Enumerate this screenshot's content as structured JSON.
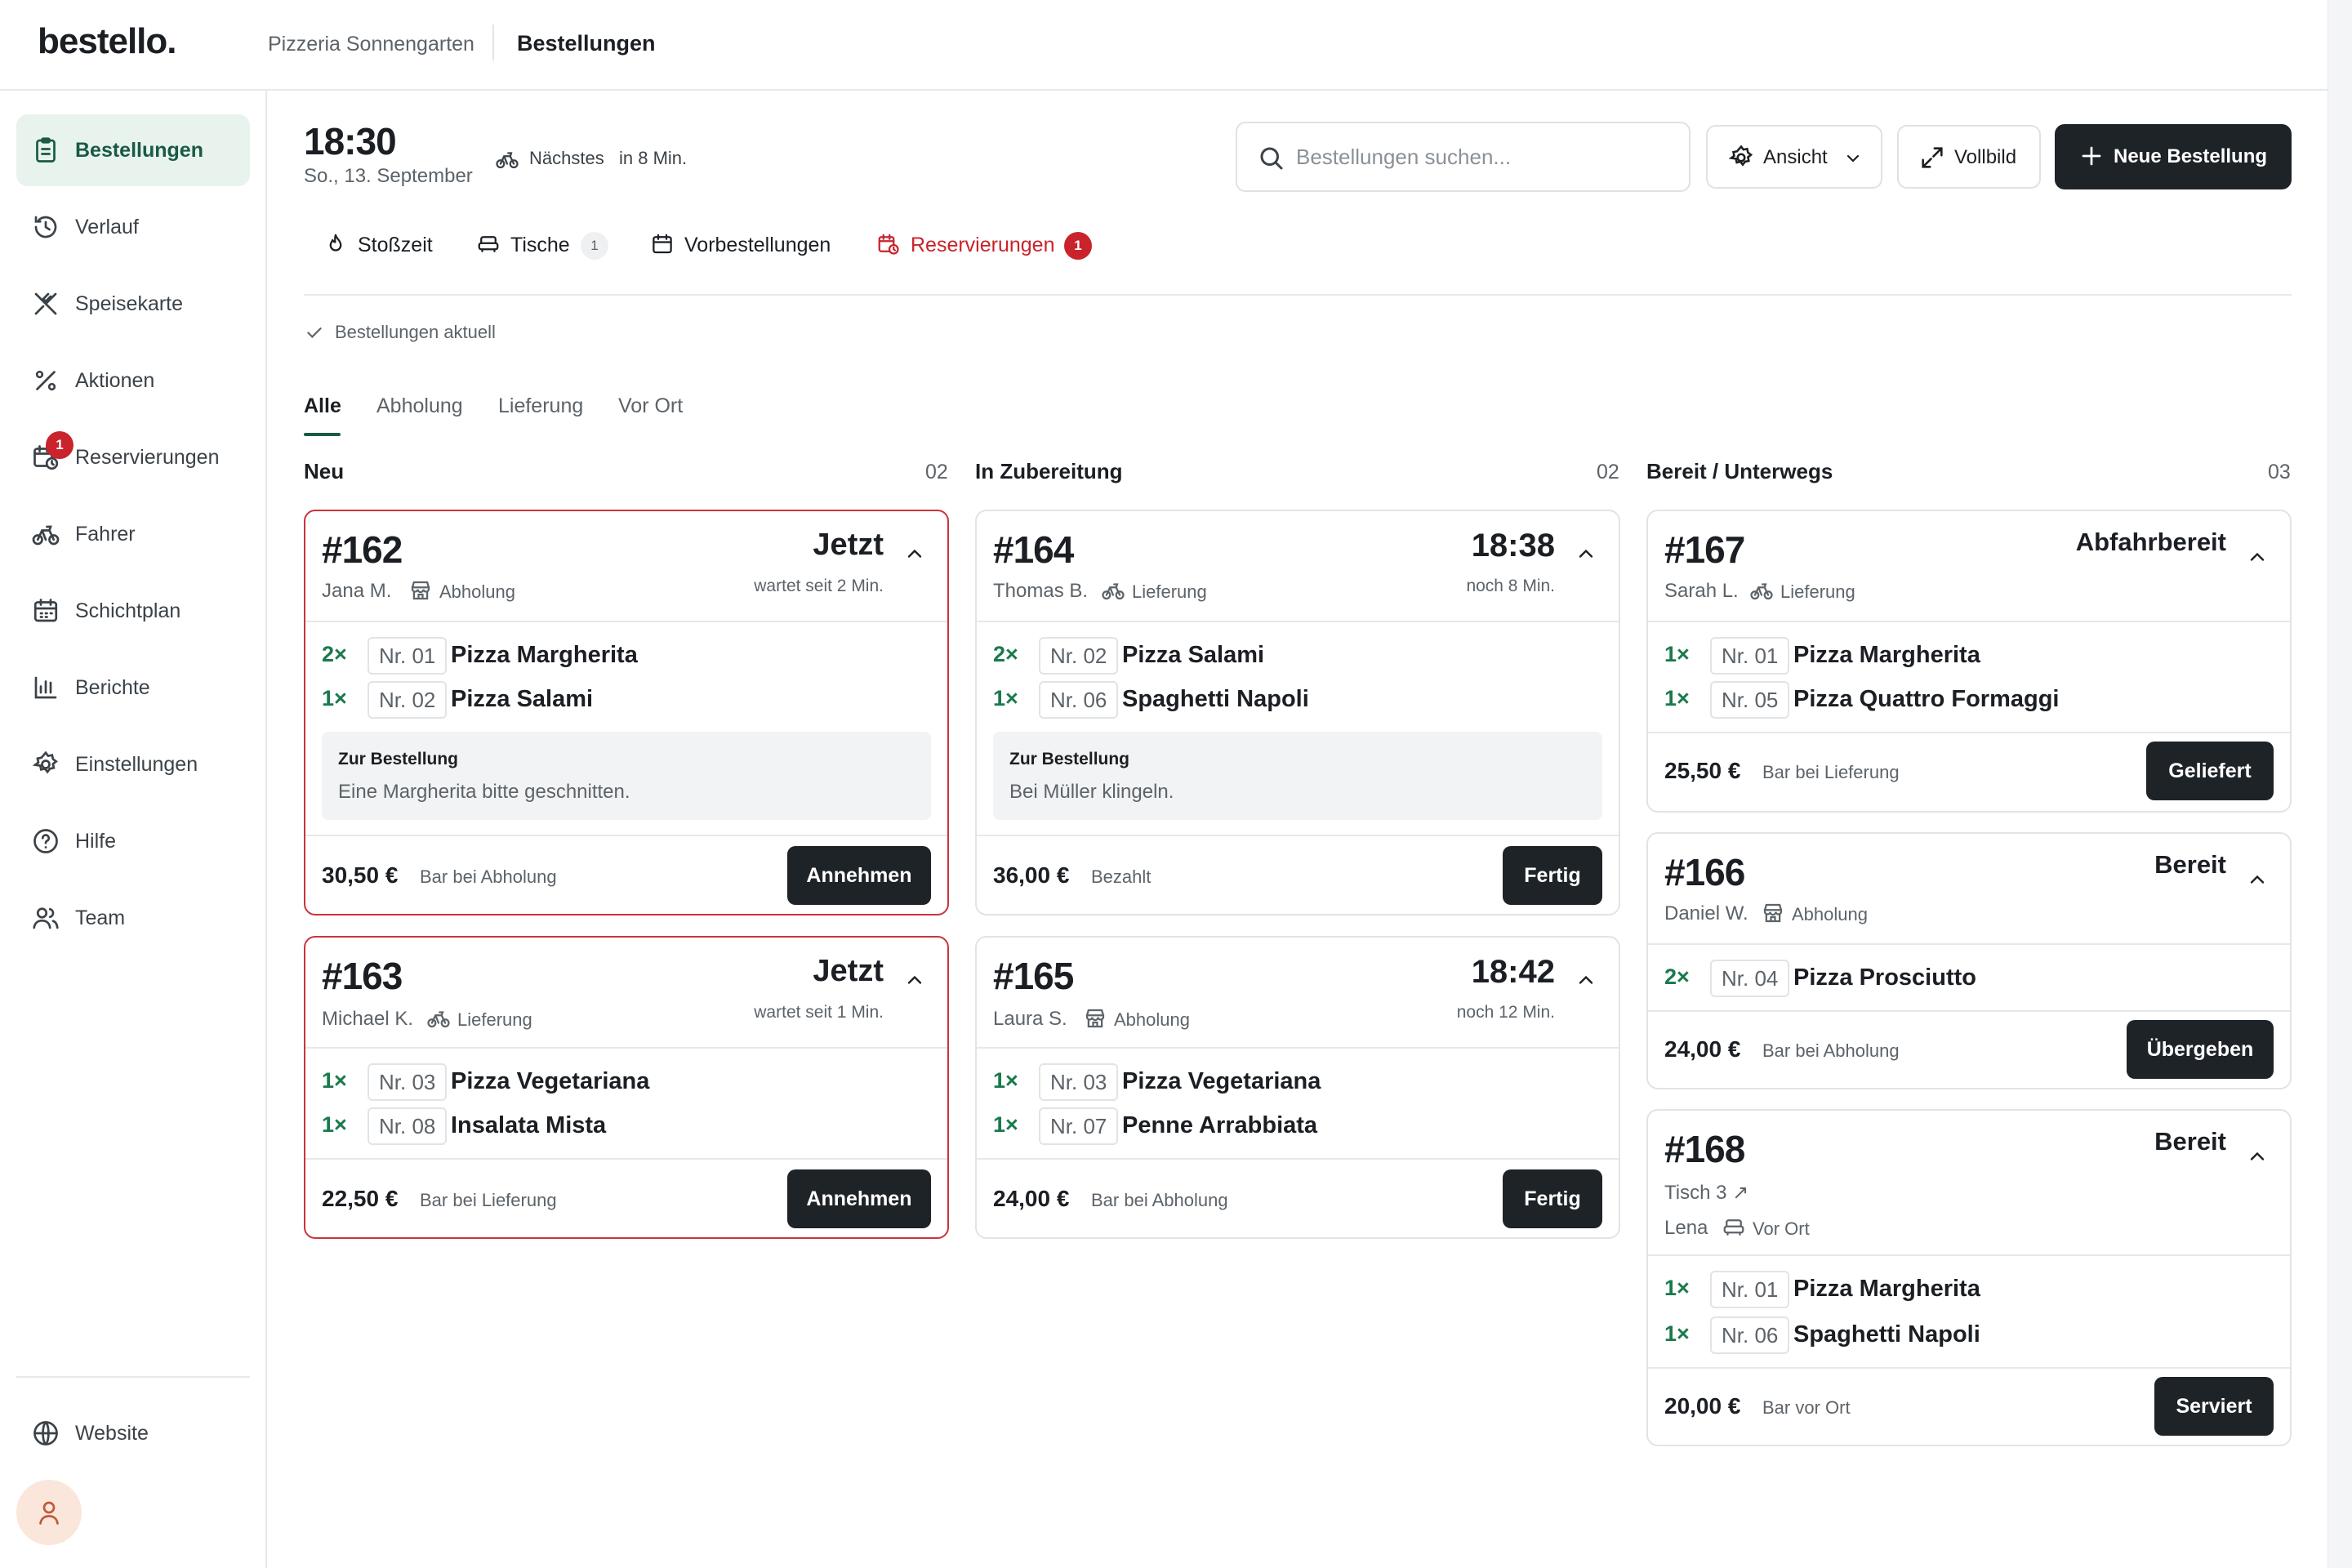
{
  "app": {
    "logo": "bestello.",
    "restaurant": "Pizzeria Sonnengarten",
    "page": "Bestellungen"
  },
  "sidebar": {
    "items": [
      {
        "label": "Bestellungen",
        "icon": "clipboard-icon",
        "active": true
      },
      {
        "label": "Verlauf",
        "icon": "history-icon"
      },
      {
        "label": "Speisekarte",
        "icon": "utensils-icon"
      },
      {
        "label": "Aktionen",
        "icon": "percent-icon"
      },
      {
        "label": "Reservierungen",
        "icon": "calendar-clock-icon",
        "badge": "1"
      },
      {
        "label": "Fahrer",
        "icon": "bicycle-icon"
      },
      {
        "label": "Schichtplan",
        "icon": "calendar-grid-icon"
      },
      {
        "label": "Berichte",
        "icon": "bar-chart-icon"
      },
      {
        "label": "Einstellungen",
        "icon": "gear-icon"
      },
      {
        "label": "Hilfe",
        "icon": "help-icon"
      },
      {
        "label": "Team",
        "icon": "users-icon"
      }
    ],
    "website": "Website"
  },
  "header": {
    "time": "18:30",
    "date": "So., 13. September",
    "next_label": "Nächstes",
    "next_time": "in 8 Min.",
    "search_placeholder": "Bestellungen suchen...",
    "view_label": "Ansicht",
    "fullscreen_label": "Vollbild",
    "new_order_label": "Neue Bestellung"
  },
  "chips": {
    "rush": "Stoßzeit",
    "tables": "Tische",
    "tables_count": "1",
    "preorders": "Vorbestellungen",
    "reservations": "Reservierungen",
    "reservations_count": "1"
  },
  "status": "Bestellungen aktuell",
  "tabs": [
    "Alle",
    "Abholung",
    "Lieferung",
    "Vor Ort"
  ],
  "columns": [
    {
      "title": "Neu",
      "count": "02"
    },
    {
      "title": "In Zubereitung",
      "count": "02"
    },
    {
      "title": "Bereit / Unterwegs",
      "count": "03"
    }
  ],
  "orders": {
    "o162": {
      "no": "#162",
      "customer": "Jana M.",
      "type": "Abholung",
      "when": "Jetzt",
      "when_sub": "wartet seit 2 Min.",
      "items": [
        {
          "qty": "2×",
          "nr": "Nr. 01",
          "name": "Pizza Margherita"
        },
        {
          "qty": "1×",
          "nr": "Nr. 02",
          "name": "Pizza Salami"
        }
      ],
      "note_title": "Zur Bestellung",
      "note": "Eine Margherita bitte geschnitten.",
      "price": "30,50 €",
      "payment": "Bar bei Abholung",
      "action": "Annehmen"
    },
    "o163": {
      "no": "#163",
      "customer": "Michael K.",
      "type": "Lieferung",
      "when": "Jetzt",
      "when_sub": "wartet seit 1 Min.",
      "items": [
        {
          "qty": "1×",
          "nr": "Nr. 03",
          "name": "Pizza Vegetariana"
        },
        {
          "qty": "1×",
          "nr": "Nr. 08",
          "name": "Insalata Mista"
        }
      ],
      "price": "22,50 €",
      "payment": "Bar bei Lieferung",
      "action": "Annehmen"
    },
    "o164": {
      "no": "#164",
      "customer": "Thomas B.",
      "type": "Lieferung",
      "when": "18:38",
      "when_sub": "noch 8 Min.",
      "items": [
        {
          "qty": "2×",
          "nr": "Nr. 02",
          "name": "Pizza Salami"
        },
        {
          "qty": "1×",
          "nr": "Nr. 06",
          "name": "Spaghetti Napoli"
        }
      ],
      "note_title": "Zur Bestellung",
      "note": "Bei Müller klingeln.",
      "price": "36,00 €",
      "payment": "Bezahlt",
      "action": "Fertig"
    },
    "o165": {
      "no": "#165",
      "customer": "Laura S.",
      "type": "Abholung",
      "when": "18:42",
      "when_sub": "noch 12 Min.",
      "items": [
        {
          "qty": "1×",
          "nr": "Nr. 03",
          "name": "Pizza Vegetariana"
        },
        {
          "qty": "1×",
          "nr": "Nr. 07",
          "name": "Penne Arrabbiata"
        }
      ],
      "price": "24,00 €",
      "payment": "Bar bei Abholung",
      "action": "Fertig"
    },
    "o167": {
      "no": "#167",
      "customer": "Sarah L.",
      "type": "Lieferung",
      "when": "Abfahrbereit",
      "items": [
        {
          "qty": "1×",
          "nr": "Nr. 01",
          "name": "Pizza Margherita"
        },
        {
          "qty": "1×",
          "nr": "Nr. 05",
          "name": "Pizza Quattro Formaggi"
        }
      ],
      "price": "25,50 €",
      "payment": "Bar bei Lieferung",
      "action": "Geliefert"
    },
    "o166": {
      "no": "#166",
      "customer": "Daniel W.",
      "type": "Abholung",
      "when": "Bereit",
      "items": [
        {
          "qty": "2×",
          "nr": "Nr. 04",
          "name": "Pizza Prosciutto"
        }
      ],
      "price": "24,00 €",
      "payment": "Bar bei Abholung",
      "action": "Übergeben"
    },
    "o168": {
      "no": "#168",
      "table": "Tisch 3 ↗",
      "customer": "Lena",
      "type": "Vor Ort",
      "when": "Bereit",
      "items": [
        {
          "qty": "1×",
          "nr": "Nr. 01",
          "name": "Pizza Margherita"
        },
        {
          "qty": "1×",
          "nr": "Nr. 06",
          "name": "Spaghetti Napoli"
        }
      ],
      "price": "20,00 €",
      "payment": "Bar vor Ort",
      "action": "Serviert"
    }
  },
  "colors": {
    "accent_green": "#1a5a45",
    "qty_green": "#1a7a4c",
    "alert_red": "#c9232c",
    "dark_button": "#1e2328"
  }
}
